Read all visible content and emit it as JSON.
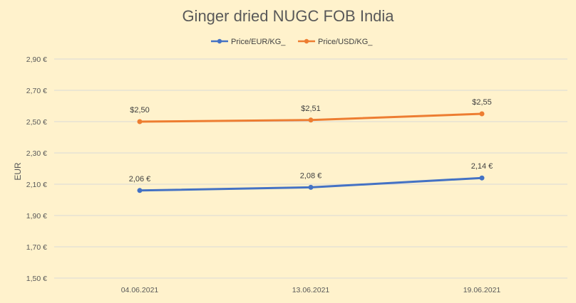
{
  "chart_data": {
    "type": "line",
    "title": "Ginger dried NUGC FOB India",
    "ylabel": "EUR",
    "xlabel": "",
    "categories": [
      "04.06.2021",
      "13.06.2021",
      "19.06.2021"
    ],
    "ylim": [
      1.5,
      2.9
    ],
    "y_ticks": [
      {
        "value": 1.5,
        "label": "1,50 €"
      },
      {
        "value": 1.7,
        "label": "1,70 €"
      },
      {
        "value": 1.9,
        "label": "1,90 €"
      },
      {
        "value": 2.1,
        "label": "2,10 €"
      },
      {
        "value": 2.3,
        "label": "2,30 €"
      },
      {
        "value": 2.5,
        "label": "2,50 €"
      },
      {
        "value": 2.7,
        "label": "2,70 €"
      },
      {
        "value": 2.9,
        "label": "2,90 €"
      }
    ],
    "grid": true,
    "legend_position": "top",
    "series": [
      {
        "name": "Price/EUR/KG_",
        "color": "#4472c4",
        "values": [
          2.06,
          2.08,
          2.14
        ],
        "labels": [
          "2,06 €",
          "2,08 €",
          "2,14 €"
        ]
      },
      {
        "name": "Price/USD/KG_",
        "color": "#ed7d31",
        "values": [
          2.5,
          2.51,
          2.55
        ],
        "labels": [
          "$2,50",
          "$2,51",
          "$2,55"
        ]
      }
    ]
  }
}
